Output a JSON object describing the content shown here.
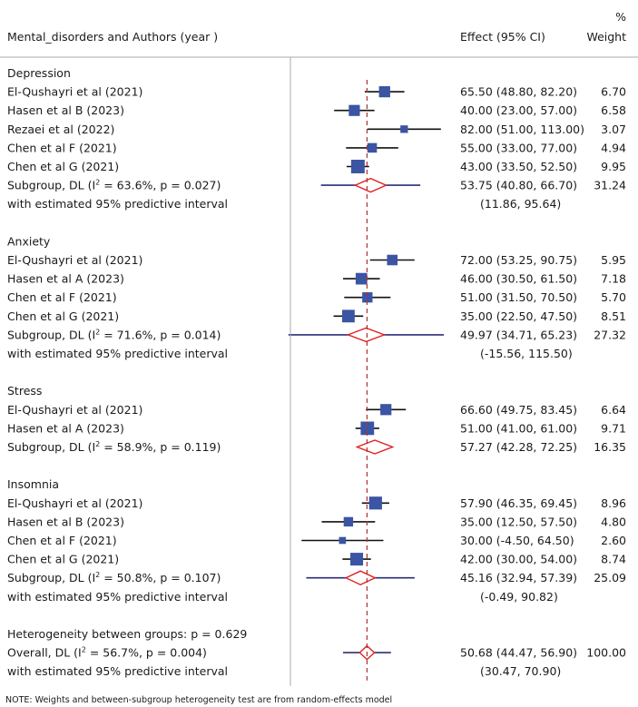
{
  "chart_data": {
    "type": "forest",
    "header": {
      "label_col": "Mental_disorders and Authors (year )",
      "effect_col": "Effect (95% CI)",
      "weight_col_line1": "%",
      "weight_col_line2": "Weight"
    },
    "x_range": [
      -20,
      120
    ],
    "overall_line_value": 50.68,
    "groups": [
      {
        "name": "Depression",
        "studies": [
          {
            "label": "El-Qushayri et al (2021)",
            "effect": 65.5,
            "lo": 48.8,
            "hi": 82.2,
            "effect_text": "65.50 (48.80, 82.20)",
            "weight": 6.7,
            "weight_text": "6.70"
          },
          {
            "label": "Hasen et al B (2023)",
            "effect": 40.0,
            "lo": 23.0,
            "hi": 57.0,
            "effect_text": "40.00 (23.00, 57.00)",
            "weight": 6.58,
            "weight_text": "6.58"
          },
          {
            "label": "Rezaei et al (2022)",
            "effect": 82.0,
            "lo": 51.0,
            "hi": 113.0,
            "effect_text": "82.00 (51.00, 113.00)",
            "weight": 3.07,
            "weight_text": "3.07"
          },
          {
            "label": "Chen et al F (2021)",
            "effect": 55.0,
            "lo": 33.0,
            "hi": 77.0,
            "effect_text": "55.00 (33.00, 77.00)",
            "weight": 4.94,
            "weight_text": "4.94"
          },
          {
            "label": "Chen et al G (2021)",
            "effect": 43.0,
            "lo": 33.5,
            "hi": 52.5,
            "effect_text": "43.00 (33.50, 52.50)",
            "weight": 9.95,
            "weight_text": "9.95"
          }
        ],
        "subgroup": {
          "label_prefix": "Subgroup, DL (I",
          "sup": "2",
          "label_suffix": " = 63.6%, p = 0.027)",
          "effect": 53.75,
          "lo": 40.8,
          "hi": 66.7,
          "effect_text": "53.75 (40.80, 66.70)",
          "weight_text": "31.24"
        },
        "predictive": {
          "label": "with estimated 95% predictive interval",
          "lo": 11.86,
          "hi": 95.64,
          "text": "(11.86, 95.64)"
        }
      },
      {
        "name": "Anxiety",
        "studies": [
          {
            "label": "El-Qushayri et al (2021)",
            "effect": 72.0,
            "lo": 53.25,
            "hi": 90.75,
            "effect_text": "72.00 (53.25, 90.75)",
            "weight": 5.95,
            "weight_text": "5.95"
          },
          {
            "label": "Hasen et al A (2023)",
            "effect": 46.0,
            "lo": 30.5,
            "hi": 61.5,
            "effect_text": "46.00 (30.50, 61.50)",
            "weight": 7.18,
            "weight_text": "7.18"
          },
          {
            "label": "Chen et al F (2021)",
            "effect": 51.0,
            "lo": 31.5,
            "hi": 70.5,
            "effect_text": "51.00 (31.50, 70.50)",
            "weight": 5.7,
            "weight_text": "5.70"
          },
          {
            "label": "Chen et al G (2021)",
            "effect": 35.0,
            "lo": 22.5,
            "hi": 47.5,
            "effect_text": "35.00 (22.50, 47.50)",
            "weight": 8.51,
            "weight_text": "8.51"
          }
        ],
        "subgroup": {
          "label_prefix": "Subgroup, DL (I",
          "sup": "2",
          "label_suffix": " = 71.6%, p = 0.014)",
          "effect": 49.97,
          "lo": 34.71,
          "hi": 65.23,
          "effect_text": "49.97 (34.71, 65.23)",
          "weight_text": "27.32"
        },
        "predictive": {
          "label": "with estimated 95% predictive interval",
          "lo": -15.56,
          "hi": 115.5,
          "text": "(-15.56, 115.50)"
        }
      },
      {
        "name": "Stress",
        "studies": [
          {
            "label": "El-Qushayri et al (2021)",
            "effect": 66.6,
            "lo": 49.75,
            "hi": 83.45,
            "effect_text": "66.60 (49.75, 83.45)",
            "weight": 6.64,
            "weight_text": "6.64"
          },
          {
            "label": "Hasen et al A (2023)",
            "effect": 51.0,
            "lo": 41.0,
            "hi": 61.0,
            "effect_text": "51.00 (41.00, 61.00)",
            "weight": 9.71,
            "weight_text": "9.71"
          }
        ],
        "subgroup": {
          "label_prefix": "Subgroup, DL (I",
          "sup": "2",
          "label_suffix": " = 58.9%, p = 0.119)",
          "effect": 57.27,
          "lo": 42.28,
          "hi": 72.25,
          "effect_text": "57.27 (42.28, 72.25)",
          "weight_text": "16.35"
        },
        "predictive": null
      },
      {
        "name": "Insomnia",
        "studies": [
          {
            "label": "El-Qushayri et al (2021)",
            "effect": 57.9,
            "lo": 46.35,
            "hi": 69.45,
            "effect_text": "57.90 (46.35, 69.45)",
            "weight": 8.96,
            "weight_text": "8.96"
          },
          {
            "label": "Hasen et al B (2023)",
            "effect": 35.0,
            "lo": 12.5,
            "hi": 57.5,
            "effect_text": "35.00 (12.50, 57.50)",
            "weight": 4.8,
            "weight_text": "4.80"
          },
          {
            "label": "Chen et al F (2021)",
            "effect": 30.0,
            "lo": -4.5,
            "hi": 64.5,
            "effect_text": "30.00 (-4.50, 64.50)",
            "weight": 2.6,
            "weight_text": "2.60"
          },
          {
            "label": "Chen et al G (2021)",
            "effect": 42.0,
            "lo": 30.0,
            "hi": 54.0,
            "effect_text": "42.00 (30.00, 54.00)",
            "weight": 8.74,
            "weight_text": "8.74"
          }
        ],
        "subgroup": {
          "label_prefix": "Subgroup, DL (I",
          "sup": "2",
          "label_suffix": " = 50.8%, p = 0.107)",
          "effect": 45.16,
          "lo": 32.94,
          "hi": 57.39,
          "effect_text": "45.16 (32.94, 57.39)",
          "weight_text": "25.09"
        },
        "predictive": {
          "label": "with estimated 95% predictive interval",
          "lo": -0.49,
          "hi": 90.82,
          "text": "(-0.49, 90.82)"
        }
      }
    ],
    "heterogeneity": "Heterogeneity between groups: p = 0.629",
    "overall": {
      "label_prefix": "Overall, DL (I",
      "sup": "2",
      "label_suffix": " = 56.7%, p = 0.004)",
      "effect": 50.68,
      "lo": 44.47,
      "hi": 56.9,
      "effect_text": "50.68 (44.47, 56.90)",
      "weight_text": "100.00"
    },
    "overall_predictive": {
      "label": "with estimated 95% predictive interval",
      "lo": 30.47,
      "hi": 70.9,
      "text": "(30.47, 70.90)"
    },
    "note": "NOTE: Weights and between-subgroup heterogeneity test are from random-effects model",
    "colors": {
      "marker": "#3b54a3",
      "ci_line": "#111111",
      "diamond": "#e02020",
      "predictive_line": "#2c2c7a",
      "ref_line": "#b03030",
      "axis": "#aaaaaa",
      "text": "#1a1a1a"
    }
  }
}
